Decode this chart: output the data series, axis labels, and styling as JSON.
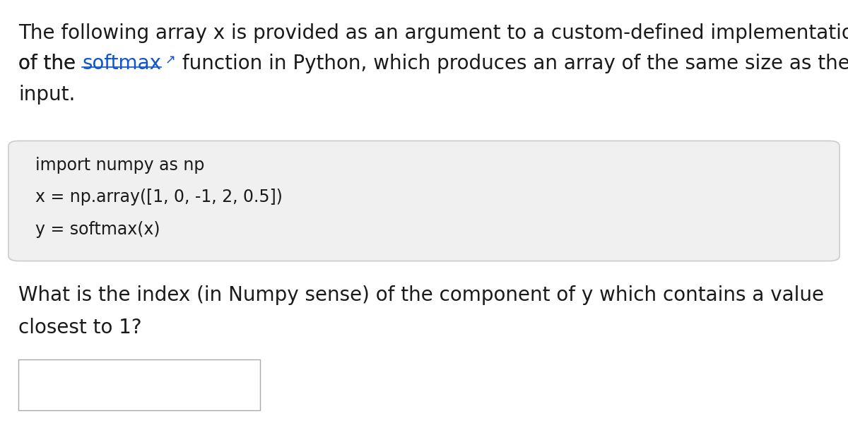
{
  "bg_color": "#ffffff",
  "text_color": "#1a1a1a",
  "link_color": "#1155CC",
  "code_bg_color": "#f0f0f0",
  "code_border_color": "#cccccc",
  "answer_box_border_color": "#aaaaaa",
  "line1": "The following array x is provided as an argument to a custom-defined implementation",
  "line2_before": "of the ",
  "line2_link": "softmax",
  "line2_icon": " ↗",
  "line2_after": " function in Python, which produces an array of the same size as the",
  "line3": "input.",
  "code_lines": [
    "import numpy as np",
    "x = np.array([1, 0, -1, 2, 0.5])",
    "y = softmax(x)"
  ],
  "question_line1": "What is the index (in Numpy sense) of the component of y which contains a value",
  "question_line2": "closest to 1?",
  "font_size_body": 20,
  "font_size_code": 17
}
